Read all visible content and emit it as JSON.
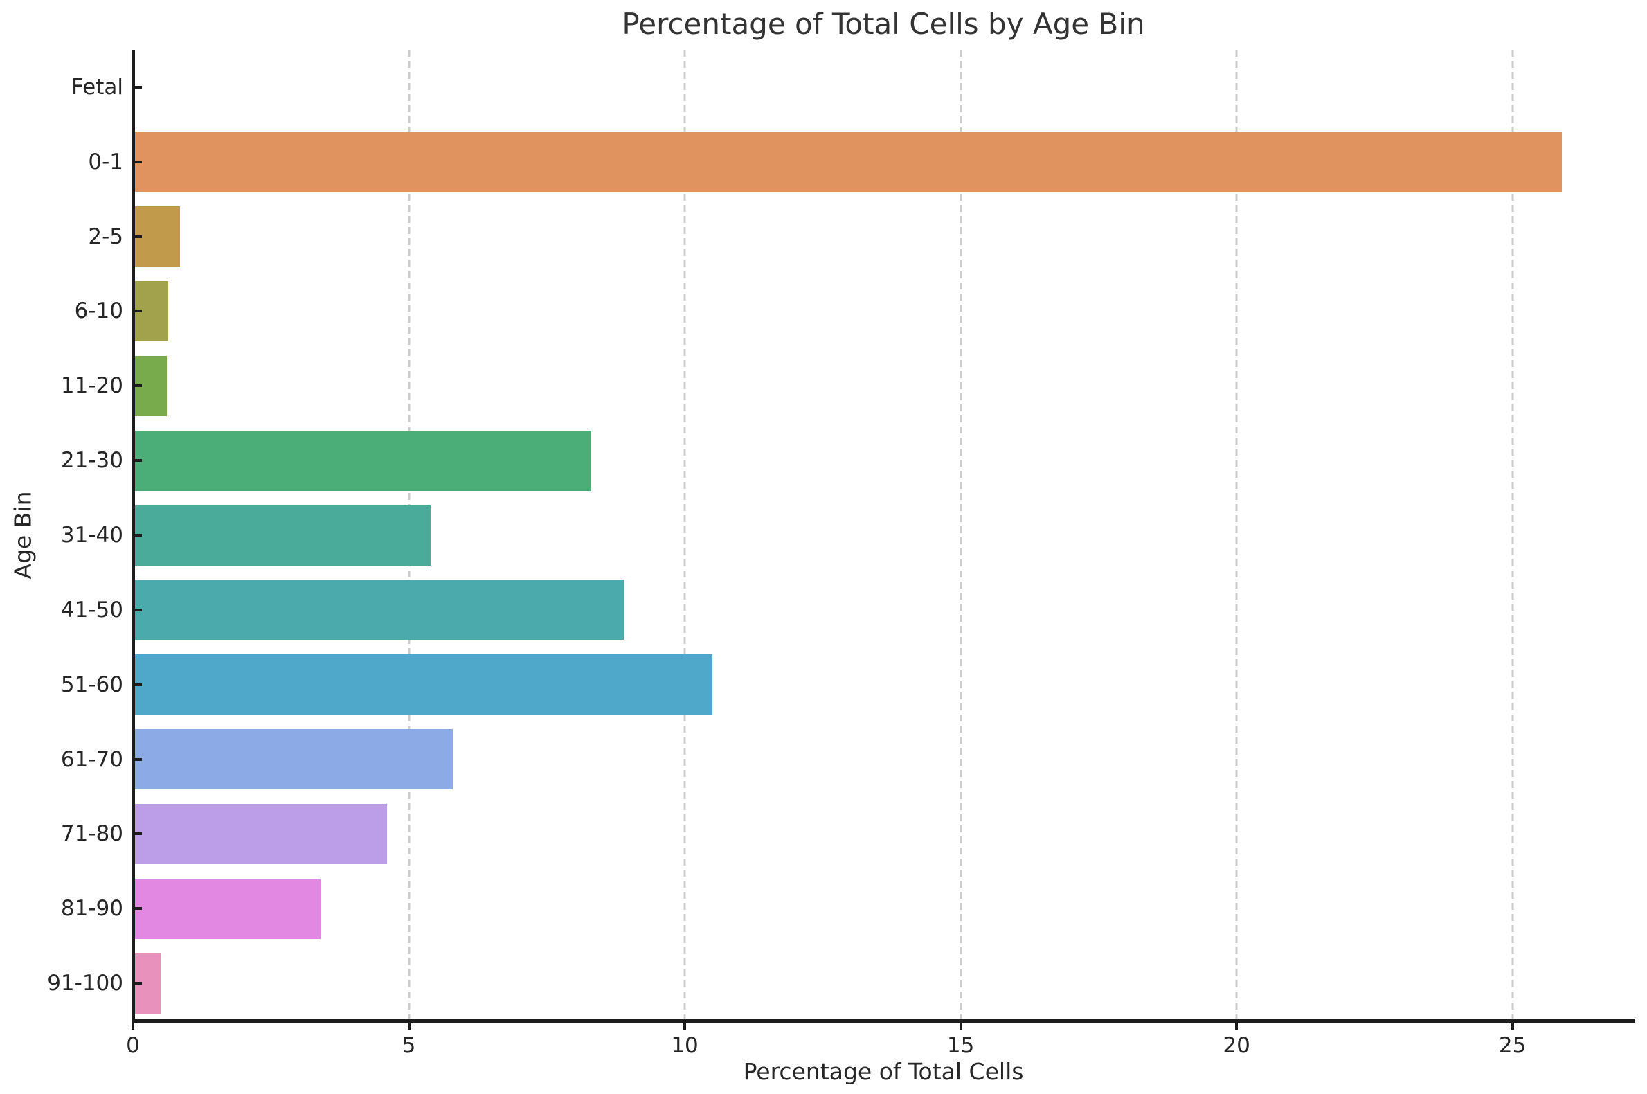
{
  "chart_data": {
    "type": "bar",
    "orientation": "horizontal",
    "title": "Percentage of Total Cells by Age Bin",
    "xlabel": "Percentage of Total Cells",
    "ylabel": "Age Bin",
    "categories": [
      "Fetal",
      "0-1",
      "2-5",
      "6-10",
      "11-20",
      "21-30",
      "31-40",
      "41-50",
      "51-60",
      "61-70",
      "71-80",
      "81-90",
      "91-100"
    ],
    "values": [
      0.0,
      25.9,
      0.85,
      0.64,
      0.62,
      8.3,
      5.4,
      8.9,
      10.5,
      5.8,
      4.6,
      3.4,
      0.5
    ],
    "bar_colors": [
      "#f1737f",
      "#e0925f",
      "#c19b4b",
      "#a1a24b",
      "#78ab4c",
      "#4bae78",
      "#4bab9a",
      "#4babac",
      "#4fa8ca",
      "#8caae5",
      "#bb9de8",
      "#e287e2",
      "#e891bd"
    ],
    "xlim": [
      0,
      27.2
    ],
    "xticks": [
      0,
      5,
      10,
      15,
      20,
      25
    ],
    "grid": "vertical-dashed",
    "grid_color": "#cccccc",
    "spine_color": "#1c1c1c",
    "tick_label_color": "#262626",
    "title_color": "#333333",
    "background_color": "#ffffff",
    "legend": "none"
  }
}
